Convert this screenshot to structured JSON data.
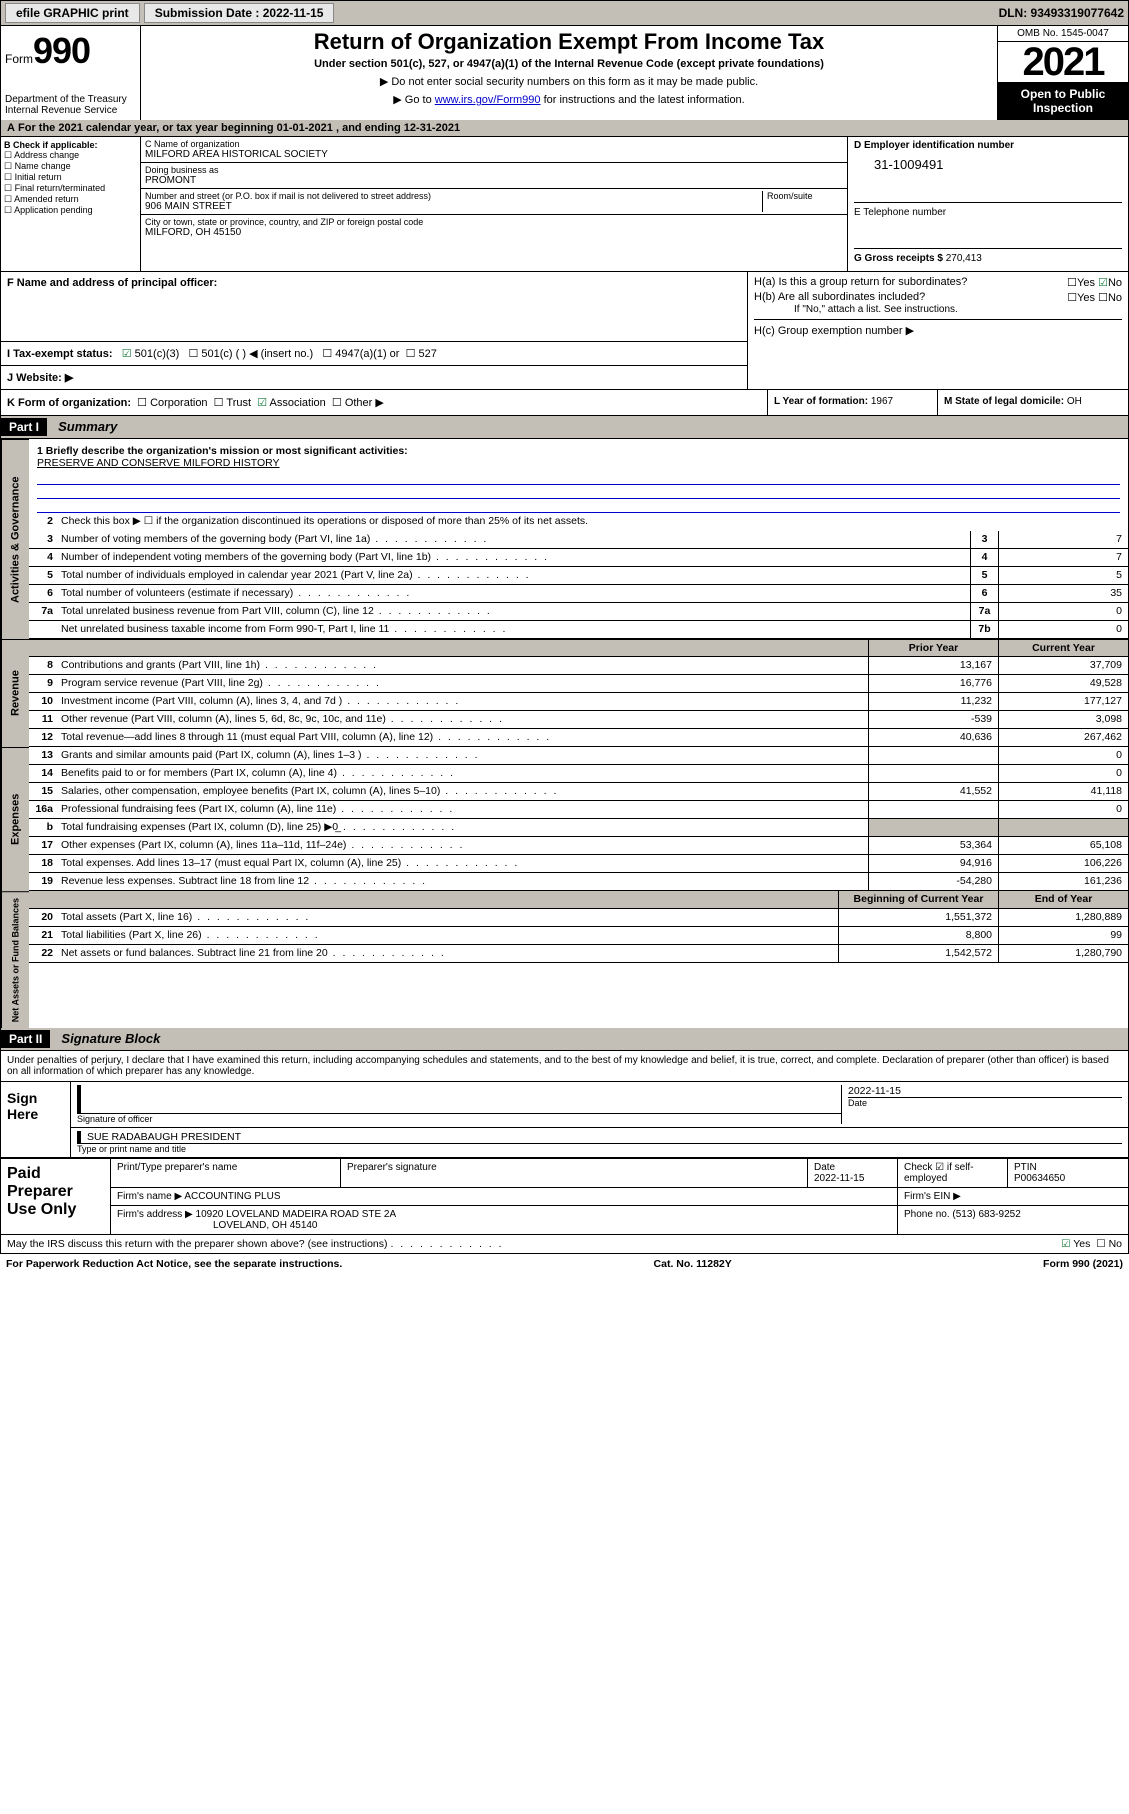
{
  "topbar": {
    "efile": "efile GRAPHIC print",
    "sub_label": "Submission Date : ",
    "sub_date": "2022-11-15",
    "dln": "DLN: 93493319077642"
  },
  "header": {
    "form_prefix": "Form",
    "form_no": "990",
    "dept": "Department of the Treasury\nInternal Revenue Service",
    "title": "Return of Organization Exempt From Income Tax",
    "subtitle": "Under section 501(c), 527, or 4947(a)(1) of the Internal Revenue Code (except private foundations)",
    "line1": "Do not enter social security numbers on this form as it may be made public.",
    "line2_pre": "Go to ",
    "line2_link": "www.irs.gov/Form990",
    "line2_post": " for instructions and the latest information.",
    "omb": "OMB No. 1545-0047",
    "year": "2021",
    "open": "Open to Public Inspection"
  },
  "period": {
    "text_a": "For the 2021 calendar year, or tax year beginning ",
    "begin": "01-01-2021",
    "text_b": " , and ending ",
    "end": "12-31-2021"
  },
  "secB": {
    "label": "B Check if applicable:",
    "items": [
      "Address change",
      "Name change",
      "Initial return",
      "Final return/terminated",
      "Amended return",
      "Application pending"
    ]
  },
  "secC": {
    "name_lbl": "C Name of organization",
    "name": "MILFORD AREA HISTORICAL SOCIETY",
    "dba_lbl": "Doing business as",
    "dba": "PROMONT",
    "addr_lbl": "Number and street (or P.O. box if mail is not delivered to street address)",
    "room_lbl": "Room/suite",
    "addr": "906 MAIN STREET",
    "city_lbl": "City or town, state or province, country, and ZIP or foreign postal code",
    "city": "MILFORD, OH  45150"
  },
  "secD": {
    "lbl": "D Employer identification number",
    "ein": "31-1009491"
  },
  "secE": {
    "lbl": "E Telephone number",
    "val": ""
  },
  "secG": {
    "lbl": "G Gross receipts $ ",
    "val": "270,413"
  },
  "secF": {
    "lbl": "F  Name and address of principal officer:"
  },
  "secH": {
    "ha": "H(a)  Is this a group return for subordinates?",
    "hb": "H(b)  Are all subordinates included?",
    "hb_note": "If \"No,\" attach a list. See instructions.",
    "hc": "H(c)  Group exemption number ▶",
    "yes": "Yes",
    "no": "No"
  },
  "secI": {
    "lbl": "I    Tax-exempt status:",
    "opt1": "501(c)(3)",
    "opt2": "501(c) (  ) ◀ (insert no.)",
    "opt3": "4947(a)(1) or",
    "opt4": "527"
  },
  "secJ": {
    "lbl": "J   Website: ▶"
  },
  "secK": {
    "lbl": "K Form of organization:",
    "o1": "Corporation",
    "o2": "Trust",
    "o3": "Association",
    "o4": "Other ▶"
  },
  "secL": {
    "lbl": "L Year of formation: ",
    "val": "1967"
  },
  "secM": {
    "lbl": "M State of legal domicile: ",
    "val": "OH"
  },
  "part1": {
    "hdr": "Part I",
    "title": "Summary",
    "q1_lbl": "1   Briefly describe the organization's mission or most significant activities:",
    "q1_val": "PRESERVE AND CONSERVE MILFORD HISTORY",
    "q2": "Check this box ▶ ☐  if the organization discontinued its operations or disposed of more than 25% of its net assets.",
    "rows_a": [
      {
        "n": "3",
        "t": "Number of voting members of the governing body (Part VI, line 1a)",
        "b": "3",
        "v": "7"
      },
      {
        "n": "4",
        "t": "Number of independent voting members of the governing body (Part VI, line 1b)",
        "b": "4",
        "v": "7"
      },
      {
        "n": "5",
        "t": "Total number of individuals employed in calendar year 2021 (Part V, line 2a)",
        "b": "5",
        "v": "5"
      },
      {
        "n": "6",
        "t": "Total number of volunteers (estimate if necessary)",
        "b": "6",
        "v": "35"
      },
      {
        "n": "7a",
        "t": "Total unrelated business revenue from Part VIII, column (C), line 12",
        "b": "7a",
        "v": "0"
      },
      {
        "n": "",
        "t": "Net unrelated business taxable income from Form 990-T, Part I, line 11",
        "b": "7b",
        "v": "0"
      }
    ],
    "colhdr_prior": "Prior Year",
    "colhdr_curr": "Current Year",
    "colhdr_beg": "Beginning of Current Year",
    "colhdr_end": "End of Year",
    "rows_rev": [
      {
        "n": "8",
        "t": "Contributions and grants (Part VIII, line 1h)",
        "p": "13,167",
        "c": "37,709"
      },
      {
        "n": "9",
        "t": "Program service revenue (Part VIII, line 2g)",
        "p": "16,776",
        "c": "49,528"
      },
      {
        "n": "10",
        "t": "Investment income (Part VIII, column (A), lines 3, 4, and 7d )",
        "p": "11,232",
        "c": "177,127"
      },
      {
        "n": "11",
        "t": "Other revenue (Part VIII, column (A), lines 5, 6d, 8c, 9c, 10c, and 11e)",
        "p": "-539",
        "c": "3,098"
      },
      {
        "n": "12",
        "t": "Total revenue—add lines 8 through 11 (must equal Part VIII, column (A), line 12)",
        "p": "40,636",
        "c": "267,462"
      }
    ],
    "rows_exp": [
      {
        "n": "13",
        "t": "Grants and similar amounts paid (Part IX, column (A), lines 1–3 )",
        "p": "",
        "c": "0"
      },
      {
        "n": "14",
        "t": "Benefits paid to or for members (Part IX, column (A), line 4)",
        "p": "",
        "c": "0"
      },
      {
        "n": "15",
        "t": "Salaries, other compensation, employee benefits (Part IX, column (A), lines 5–10)",
        "p": "41,552",
        "c": "41,118"
      },
      {
        "n": "16a",
        "t": "Professional fundraising fees (Part IX, column (A), line 11e)",
        "p": "",
        "c": "0"
      },
      {
        "n": "b",
        "t": "Total fundraising expenses (Part IX, column (D), line 25) ▶0̲",
        "p": "grey",
        "c": "grey"
      },
      {
        "n": "17",
        "t": "Other expenses (Part IX, column (A), lines 11a–11d, 11f–24e)",
        "p": "53,364",
        "c": "65,108"
      },
      {
        "n": "18",
        "t": "Total expenses. Add lines 13–17 (must equal Part IX, column (A), line 25)",
        "p": "94,916",
        "c": "106,226"
      },
      {
        "n": "19",
        "t": "Revenue less expenses. Subtract line 18 from line 12",
        "p": "-54,280",
        "c": "161,236"
      }
    ],
    "rows_net": [
      {
        "n": "20",
        "t": "Total assets (Part X, line 16)",
        "p": "1,551,372",
        "c": "1,280,889"
      },
      {
        "n": "21",
        "t": "Total liabilities (Part X, line 26)",
        "p": "8,800",
        "c": "99"
      },
      {
        "n": "22",
        "t": "Net assets or fund balances. Subtract line 21 from line 20",
        "p": "1,542,572",
        "c": "1,280,790"
      }
    ],
    "vtabs": {
      "a": "Activities & Governance",
      "r": "Revenue",
      "e": "Expenses",
      "n": "Net Assets or Fund Balances"
    }
  },
  "part2": {
    "hdr": "Part II",
    "title": "Signature Block",
    "penalty": "Under penalties of perjury, I declare that I have examined this return, including accompanying schedules and statements, and to the best of my knowledge and belief, it is true, correct, and complete. Declaration of preparer (other than officer) is based on all information of which preparer has any knowledge.",
    "sign_here": "Sign Here",
    "sig_officer": "Signature of officer",
    "sig_date": "2022-11-15",
    "date_lbl": "Date",
    "officer_name": "SUE RADABAUGH  PRESIDENT",
    "officer_lbl": "Type or print name and title",
    "paid": "Paid Preparer Use Only",
    "prep_hdrs": [
      "Print/Type preparer's name",
      "Preparer's signature",
      "Date",
      "",
      "PTIN"
    ],
    "prep_date": "2022-11-15",
    "prep_check": "Check ☑ if self-employed",
    "ptin": "P00634650",
    "firm_name_lbl": "Firm's name    ▶ ",
    "firm_name": "ACCOUNTING PLUS",
    "firm_ein_lbl": "Firm's EIN ▶",
    "firm_addr_lbl": "Firm's address ▶ ",
    "firm_addr": "10920 LOVELAND MADEIRA ROAD STE 2A",
    "firm_city": "LOVELAND, OH  45140",
    "phone_lbl": "Phone no. ",
    "phone": "(513) 683-9252",
    "discuss": "May the IRS discuss this return with the preparer shown above? (see instructions)",
    "yes": "Yes",
    "no": "No"
  },
  "footer": {
    "left": "For Paperwork Reduction Act Notice, see the separate instructions.",
    "mid": "Cat. No. 11282Y",
    "right": "Form 990 (2021)"
  }
}
